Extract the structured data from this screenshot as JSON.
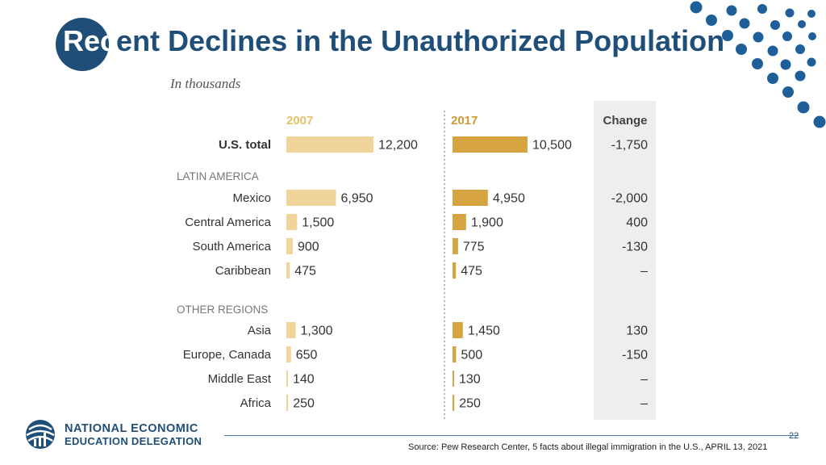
{
  "slide": {
    "title_lead": "Rec",
    "title_rest": "ent Declines in the Unauthorized Population",
    "page_number": "22",
    "source": "Source: Pew Research Center, 5 facts about illegal immigration in the U.S., APRIL 13, 2021",
    "logo": {
      "line1": "NATIONAL ECONOMIC",
      "line2": "EDUCATION DELEGATION"
    }
  },
  "colors": {
    "title_blue": "#1f4e79",
    "bar_2007": "#f0d59a",
    "bar_2017": "#d6a542",
    "header_2007": "#e2c26a",
    "header_2017": "#cf9b33",
    "change_bg": "#eeeeec",
    "dot_blue": "#1f5f99"
  },
  "chart_data": {
    "type": "bar",
    "unit_label": "In thousands",
    "columns": {
      "y2007": "2007",
      "y2017": "2017",
      "change": "Change"
    },
    "groups": [
      "LATIN AMERICA",
      "OTHER REGIONS"
    ],
    "rows": [
      {
        "label": "U.S. total",
        "bold": true,
        "v2007": 12200,
        "t2007": "12,200",
        "v2017": 10500,
        "t2017": "10,500",
        "change": "-1,750"
      },
      {
        "label": "Mexico",
        "v2007": 6950,
        "t2007": "6,950",
        "v2017": 4950,
        "t2017": "4,950",
        "change": "-2,000"
      },
      {
        "label": "Central America",
        "v2007": 1500,
        "t2007": "1,500",
        "v2017": 1900,
        "t2017": "1,900",
        "change": "400"
      },
      {
        "label": "South America",
        "v2007": 900,
        "t2007": "900",
        "v2017": 775,
        "t2017": "775",
        "change": "-130"
      },
      {
        "label": "Caribbean",
        "v2007": 475,
        "t2007": "475",
        "v2017": 475,
        "t2017": "475",
        "change": "–"
      },
      {
        "label": "Asia",
        "v2007": 1300,
        "t2007": "1,300",
        "v2017": 1450,
        "t2017": "1,450",
        "change": "130"
      },
      {
        "label": "Europe, Canada",
        "v2007": 650,
        "t2007": "650",
        "v2017": 500,
        "t2017": "500",
        "change": "-150"
      },
      {
        "label": "Middle East",
        "v2007": 140,
        "t2007": "140",
        "v2017": 130,
        "t2017": "130",
        "change": "–"
      },
      {
        "label": "Africa",
        "v2007": 250,
        "t2007": "250",
        "v2017": 250,
        "t2017": "250",
        "change": "–"
      }
    ]
  }
}
